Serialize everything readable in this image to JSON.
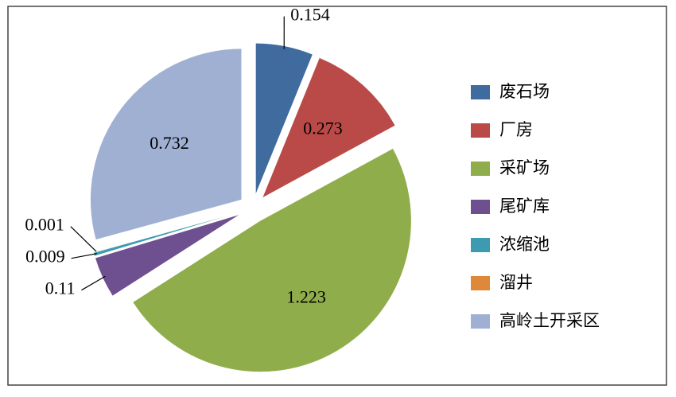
{
  "chart_data": {
    "type": "pie",
    "categories": [
      "废石场",
      "厂房",
      "采矿场",
      "尾矿库",
      "浓缩池",
      "溜井",
      "高岭土开采区"
    ],
    "values": [
      0.154,
      0.273,
      1.223,
      0.11,
      0.009,
      0.001,
      0.732
    ],
    "colors": [
      "#3f6b9e",
      "#b94a47",
      "#8fad4a",
      "#6e4f8f",
      "#3d9ab0",
      "#e0883a",
      "#9fb0d3"
    ],
    "legend": "right"
  }
}
